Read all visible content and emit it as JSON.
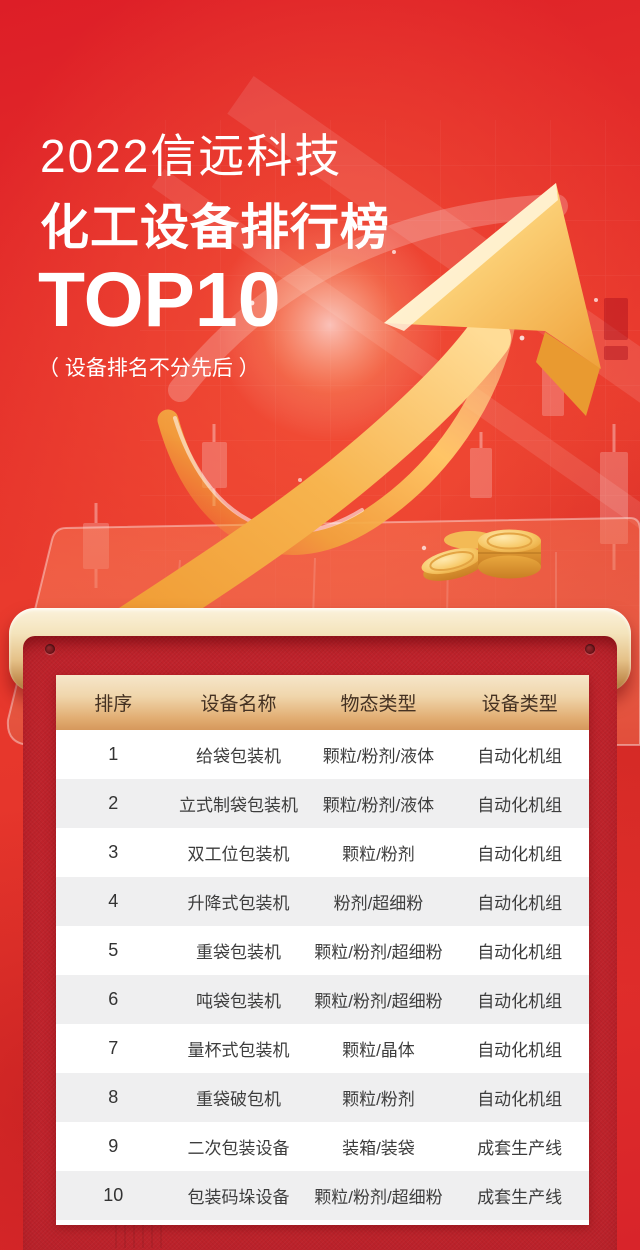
{
  "hero": {
    "title_line1": "2022信远科技",
    "title_line2": "化工设备排行榜",
    "title_line3": "TOP10",
    "subtitle": "（ 设备排名不分先后 ）"
  },
  "table": {
    "headers": [
      "排序",
      "设备名称",
      "物态类型",
      "设备类型"
    ],
    "rows": [
      [
        "1",
        "给袋包装机",
        "颗粒/粉剂/液体",
        "自动化机组"
      ],
      [
        "2",
        "立式制袋包装机",
        "颗粒/粉剂/液体",
        "自动化机组"
      ],
      [
        "3",
        "双工位包装机",
        "颗粒/粉剂",
        "自动化机组"
      ],
      [
        "4",
        "升降式包装机",
        "粉剂/超细粉",
        "自动化机组"
      ],
      [
        "5",
        "重袋包装机",
        "颗粒/粉剂/超细粉",
        "自动化机组"
      ],
      [
        "6",
        "吨袋包装机",
        "颗粒/粉剂/超细粉",
        "自动化机组"
      ],
      [
        "7",
        "量杯式包装机",
        "颗粒/晶体",
        "自动化机组"
      ],
      [
        "8",
        "重袋破包机",
        "颗粒/粉剂",
        "自动化机组"
      ],
      [
        "9",
        "二次包装设备",
        "装箱/装袋",
        "成套生产线"
      ],
      [
        "10",
        "包装码垛设备",
        "颗粒/粉剂/超细粉",
        "成套生产线"
      ]
    ]
  },
  "colors": {
    "background_red": "#E4332B",
    "panel_red": "#C2232C",
    "gold_frame_light": "#F6E7C4",
    "gold_frame_dark": "#C08A4C",
    "header_gradient_top": "#F6E6CA",
    "header_gradient_bottom": "#D6985C",
    "row_alt_gray": "#EFEFF0",
    "arrow_gold": "#F5B151",
    "text_white": "#FFFFFF",
    "cell_text": "#3D3D3D"
  }
}
